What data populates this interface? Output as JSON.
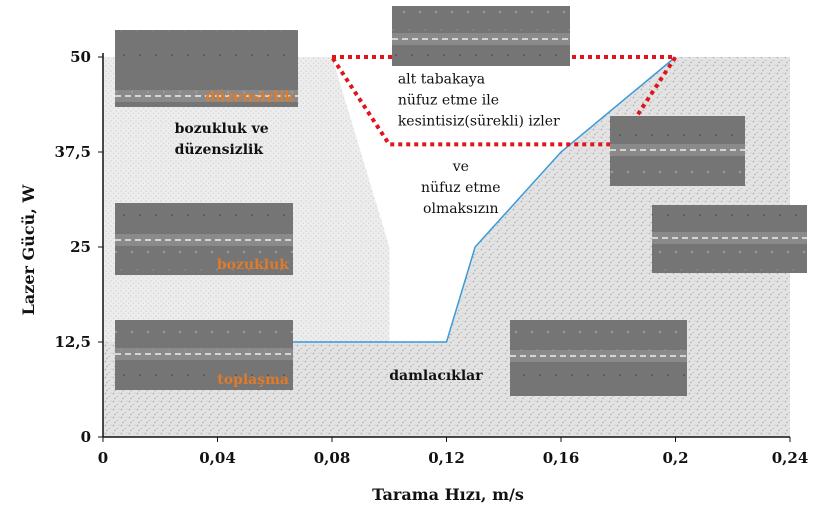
{
  "chart_data": {
    "type": "area",
    "xlabel": "Tarama Hızı, m/s",
    "ylabel": "Lazer Gücü, W",
    "xlim": [
      0,
      0.24
    ],
    "ylim": [
      0,
      50
    ],
    "x_ticks": [
      "0",
      "0,04",
      "0,08",
      "0,12",
      "0,16",
      "0,2",
      "0,24"
    ],
    "y_ticks": [
      "0",
      "12,5",
      "25",
      "37,5",
      "50"
    ],
    "x_tick_values": [
      0,
      0.04,
      0.08,
      0.12,
      0.16,
      0.2,
      0.24
    ],
    "y_tick_values": [
      0,
      12.5,
      25,
      37.5,
      50
    ],
    "boundary_line": {
      "color": "#3b9bd9",
      "points": [
        [
          0.05,
          12.5
        ],
        [
          0.12,
          12.5
        ],
        [
          0.13,
          25
        ],
        [
          0.16,
          37.5
        ],
        [
          0.2,
          50
        ]
      ]
    },
    "dotted_boundary": [
      [
        0.0,
        50
      ],
      [
        0.08,
        50
      ],
      [
        0.1,
        25
      ],
      [
        0.1,
        12.5
      ]
    ],
    "red_region": {
      "color": "#e0141b",
      "points": [
        [
          0.08,
          50
        ],
        [
          0.2,
          50
        ],
        [
          0.18,
          38.5
        ],
        [
          0.1,
          38.5
        ]
      ]
    },
    "regions": [
      {
        "key": "distortion",
        "lines": [
          "bozukluk ve",
          "düzensizlik"
        ],
        "x": 0.025,
        "y": 40
      },
      {
        "key": "continuous",
        "lines": [
          "alt tabakaya",
          "nüfuz etme ile",
          "kesintisiz(sürekli) izler"
        ],
        "x": 0.103,
        "y": 46.5
      },
      {
        "key": "nopen",
        "lines": [
          "ve",
          "nüfuz etme",
          "olmaksızın"
        ],
        "x": 0.125,
        "y": 35
      },
      {
        "key": "drops",
        "lines": [
          "damlacıklar"
        ],
        "x": 0.1,
        "y": 7.5
      }
    ],
    "insets": [
      {
        "label": "düzensizlik"
      },
      {
        "label": "bozukluk"
      },
      {
        "label": "toplaşma"
      },
      {
        "label": ""
      },
      {
        "label": ""
      },
      {
        "label": ""
      },
      {
        "label": ""
      }
    ]
  }
}
